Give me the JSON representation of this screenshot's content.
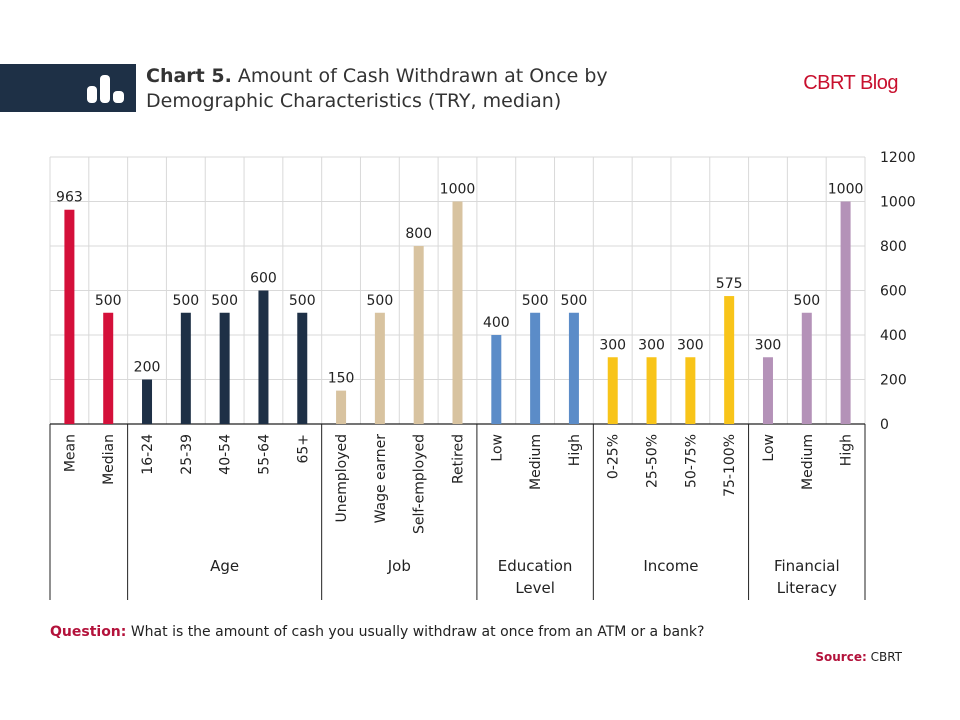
{
  "header": {
    "title_bold": "Chart 5.",
    "title_line1": "Amount of Cash Withdrawn at Once by",
    "title_line2": "Demographic Characteristics (TRY, median)",
    "blog": "CBRT Blog"
  },
  "footer": {
    "question_label": "Question:",
    "question_text": "What is the amount of cash you usually withdraw at once from an ATM or a bank?",
    "source_label": "Source:",
    "source_text": "CBRT"
  },
  "chart_data": {
    "type": "bar",
    "ylim": [
      0,
      1200
    ],
    "yticks": [
      0,
      200,
      400,
      600,
      800,
      1000,
      1200
    ],
    "grid": true,
    "axis_side": "right",
    "categories": [
      "Mean",
      "Median",
      "16-24",
      "25-39",
      "40-54",
      "55-64",
      "65+",
      "Unemployed",
      "Wage earner",
      "Self-employed",
      "Retired",
      "Low",
      "Medium",
      "High",
      "0-25%",
      "25-50%",
      "50-75%",
      "75-100%",
      "Low",
      "Medium",
      "High"
    ],
    "values": [
      963,
      500,
      200,
      500,
      500,
      600,
      500,
      150,
      500,
      800,
      1000,
      400,
      500,
      500,
      300,
      300,
      300,
      575,
      300,
      500,
      1000
    ],
    "colors": [
      "#d4103a",
      "#d4103a",
      "#1e3046",
      "#1e3046",
      "#1e3046",
      "#1e3046",
      "#1e3046",
      "#d8c3a0",
      "#d8c3a0",
      "#d8c3a0",
      "#d8c3a0",
      "#5b8cc8",
      "#5b8cc8",
      "#5b8cc8",
      "#f8c419",
      "#f8c419",
      "#f8c419",
      "#f8c419",
      "#b492b8",
      "#b492b8",
      "#b492b8"
    ],
    "groups": [
      {
        "label": "",
        "start": 0,
        "end": 1
      },
      {
        "label": "Age",
        "start": 2,
        "end": 6
      },
      {
        "label": "Job",
        "start": 7,
        "end": 10
      },
      {
        "label": "Education Level",
        "start": 11,
        "end": 13
      },
      {
        "label": "Income",
        "start": 14,
        "end": 17
      },
      {
        "label": "Financial Literacy",
        "start": 18,
        "end": 20
      }
    ]
  }
}
